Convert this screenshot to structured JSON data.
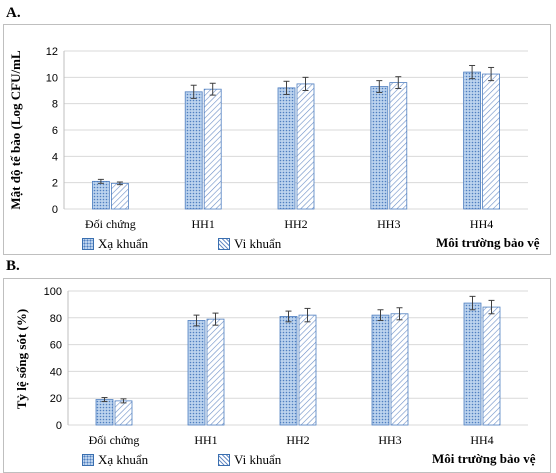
{
  "chart_data": [
    {
      "type": "bar",
      "panel_label": "A.",
      "categories": [
        "Đối chứng",
        "HH1",
        "HH2",
        "HH3",
        "HH4"
      ],
      "series": [
        {
          "name": "Xạ khuẩn",
          "values": [
            2.1,
            8.9,
            9.2,
            9.3,
            10.4
          ],
          "errors": [
            0.15,
            0.5,
            0.5,
            0.45,
            0.5
          ]
        },
        {
          "name": "Vi khuẩn",
          "values": [
            1.95,
            9.1,
            9.5,
            9.6,
            10.25
          ],
          "errors": [
            0.1,
            0.45,
            0.5,
            0.45,
            0.5
          ]
        }
      ],
      "ylabel": "Mật độ tế bào (Log CFU/mL",
      "xlabel": "Môi trường bảo vệ",
      "ylim": [
        0,
        12
      ],
      "yticks": [
        0,
        2,
        4,
        6,
        8,
        10,
        12
      ],
      "grid": true,
      "legend_position": "bottom"
    },
    {
      "type": "bar",
      "panel_label": "B.",
      "categories": [
        "Đối chứng",
        "HH1",
        "HH2",
        "HH3",
        "HH4"
      ],
      "series": [
        {
          "name": "Xạ khuẩn",
          "values": [
            19,
            78,
            81,
            82,
            91
          ],
          "errors": [
            1.5,
            4,
            4,
            4,
            5
          ]
        },
        {
          "name": "Vi khuẩn",
          "values": [
            18,
            79,
            82,
            83,
            88
          ],
          "errors": [
            1.5,
            4.5,
            5,
            4.5,
            5
          ]
        }
      ],
      "ylabel": "Tỷ lệ sống sót (%)",
      "xlabel": "Môi trường bảo vệ",
      "ylim": [
        0,
        100
      ],
      "yticks": [
        0,
        20,
        40,
        60,
        80,
        100
      ],
      "grid": true,
      "legend_position": "bottom"
    }
  ],
  "colors": {
    "grid": "#d9d9d9",
    "bar_outline": "#4f7fc0",
    "dots_fill": "#bcd3ee",
    "hatch": "#6c8fc7",
    "error_bar": "#404040"
  }
}
